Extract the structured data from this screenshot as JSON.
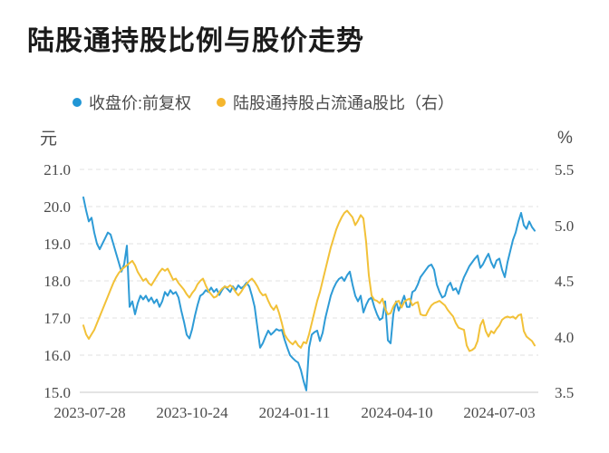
{
  "page": {
    "title": "陆股通持股比例与股价走势"
  },
  "legend": {
    "items": [
      {
        "label": "收盘价:前复权",
        "color": "#2196d5",
        "marker": "circle"
      },
      {
        "label": "陆股通持股占流通a股比（右）",
        "color": "#f5b62e",
        "marker": "circle"
      }
    ]
  },
  "chart_data": {
    "type": "line",
    "title": "陆股通持股比例与股价走势",
    "grid": "horizontal-dashed",
    "legend_position": "top",
    "left_axis": {
      "unit": "元",
      "min": 15.0,
      "max": 21.0,
      "ticks": [
        "21.0",
        "20.0",
        "19.0",
        "18.0",
        "17.0",
        "16.0",
        "15.0"
      ]
    },
    "right_axis": {
      "unit": "%",
      "min": 3.5,
      "max": 5.5,
      "ticks": [
        "5.5",
        "5.0",
        "4.5",
        "4.0",
        "3.5"
      ]
    },
    "x_tick_labels": [
      "2023-07-28",
      "2023-10-24",
      "2024-01-11",
      "2024-04-10",
      "2024-07-03"
    ],
    "x_range_note": "daily series from 2023-07-28 to about 2024-07-26",
    "series": [
      {
        "name": "收盘价:前复权",
        "axis": "left",
        "color": "#2e9bd6",
        "values": [
          20.25,
          19.9,
          19.6,
          19.7,
          19.3,
          19.0,
          18.85,
          19.0,
          19.15,
          19.3,
          19.25,
          19.0,
          18.75,
          18.5,
          18.25,
          18.45,
          18.95,
          17.3,
          17.45,
          17.1,
          17.4,
          17.6,
          17.5,
          17.6,
          17.45,
          17.55,
          17.4,
          17.5,
          17.3,
          17.45,
          17.7,
          17.6,
          17.75,
          17.65,
          17.7,
          17.55,
          17.2,
          16.9,
          16.55,
          16.45,
          16.7,
          17.05,
          17.35,
          17.6,
          17.65,
          17.75,
          17.7,
          17.82,
          17.7,
          17.78,
          17.62,
          17.75,
          17.85,
          17.78,
          17.7,
          17.85,
          17.75,
          17.88,
          17.8,
          17.85,
          17.95,
          17.85,
          17.6,
          17.3,
          16.75,
          16.2,
          16.32,
          16.5,
          16.66,
          16.55,
          16.62,
          16.7,
          16.66,
          16.68,
          16.42,
          16.2,
          16.0,
          15.92,
          15.85,
          15.8,
          15.6,
          15.3,
          15.05,
          16.2,
          16.55,
          16.62,
          16.66,
          16.38,
          16.6,
          17.0,
          17.3,
          17.6,
          17.8,
          17.95,
          18.05,
          18.1,
          18.0,
          18.15,
          18.25,
          17.9,
          17.6,
          17.45,
          17.6,
          17.15,
          17.35,
          17.5,
          17.55,
          17.3,
          17.1,
          16.95,
          17.0,
          17.45,
          16.4,
          16.32,
          17.1,
          17.45,
          17.2,
          17.4,
          17.6,
          17.3,
          17.3,
          17.7,
          17.75,
          17.9,
          18.1,
          18.2,
          18.3,
          18.4,
          18.44,
          18.3,
          17.9,
          17.7,
          17.55,
          17.6,
          17.85,
          17.95,
          17.75,
          17.8,
          17.65,
          17.9,
          18.1,
          18.25,
          18.4,
          18.5,
          18.6,
          18.68,
          18.35,
          18.45,
          18.6,
          18.73,
          18.5,
          18.35,
          18.55,
          18.6,
          18.3,
          18.1,
          18.5,
          18.8,
          19.1,
          19.3,
          19.6,
          19.83,
          19.5,
          19.4,
          19.6,
          19.45,
          19.35
        ]
      },
      {
        "name": "陆股通持股占流通a股比（右）",
        "axis": "right",
        "color": "#f2c138",
        "values": [
          4.1,
          4.02,
          3.98,
          4.02,
          4.06,
          4.12,
          4.18,
          4.24,
          4.3,
          4.36,
          4.42,
          4.48,
          4.53,
          4.57,
          4.6,
          4.62,
          4.64,
          4.66,
          4.68,
          4.64,
          4.58,
          4.54,
          4.5,
          4.52,
          4.48,
          4.46,
          4.5,
          4.54,
          4.58,
          4.61,
          4.59,
          4.61,
          4.56,
          4.51,
          4.52,
          4.48,
          4.45,
          4.42,
          4.38,
          4.35,
          4.39,
          4.42,
          4.47,
          4.5,
          4.52,
          4.46,
          4.41,
          4.38,
          4.35,
          4.36,
          4.4,
          4.43,
          4.45,
          4.44,
          4.46,
          4.44,
          4.4,
          4.37,
          4.4,
          4.44,
          4.47,
          4.5,
          4.52,
          4.49,
          4.45,
          4.4,
          4.37,
          4.38,
          4.32,
          4.27,
          4.24,
          4.28,
          4.21,
          4.12,
          4.02,
          3.98,
          3.95,
          3.93,
          3.96,
          3.92,
          3.9,
          3.95,
          3.94,
          4.02,
          4.12,
          4.22,
          4.32,
          4.4,
          4.5,
          4.6,
          4.7,
          4.8,
          4.88,
          4.96,
          5.02,
          5.07,
          5.11,
          5.13,
          5.1,
          5.07,
          5.0,
          5.04,
          5.09,
          5.06,
          4.85,
          4.55,
          4.37,
          4.33,
          4.32,
          4.3,
          4.34,
          4.25,
          4.2,
          4.21,
          4.27,
          4.31,
          4.32,
          4.26,
          4.31,
          4.33,
          4.34,
          4.28,
          4.3,
          4.31,
          4.2,
          4.19,
          4.19,
          4.24,
          4.28,
          4.3,
          4.31,
          4.32,
          4.3,
          4.28,
          4.24,
          4.21,
          4.18,
          4.12,
          4.08,
          4.07,
          4.06,
          3.92,
          3.87,
          3.88,
          3.9,
          3.96,
          4.1,
          4.15,
          4.05,
          4.0,
          4.05,
          4.03,
          4.07,
          4.1,
          4.15,
          4.17,
          4.18,
          4.17,
          4.18,
          4.16,
          4.19,
          4.2,
          4.05,
          4.0,
          3.98,
          3.96,
          3.92
        ]
      }
    ]
  }
}
